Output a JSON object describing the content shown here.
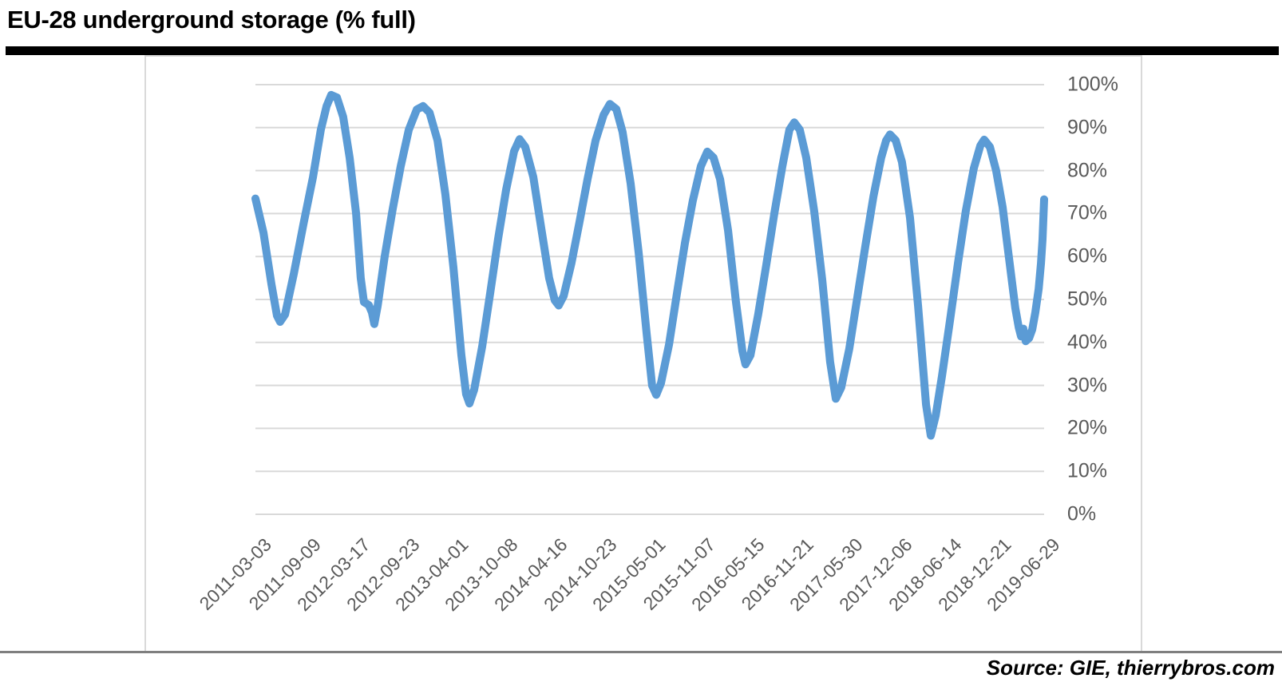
{
  "header": {
    "title": "EU-28 underground storage (% full)"
  },
  "footer": {
    "source": "Source: GIE, thierrybros.com"
  },
  "chart_data": {
    "type": "line",
    "title": "EU-28 underground storage (% full)",
    "xlabel": "",
    "ylabel": "",
    "unit": "%",
    "ylim": [
      0,
      100
    ],
    "grid": "horizontal",
    "y_axis_side": "right",
    "legend": "none",
    "y_tick_values": [
      100,
      90,
      80,
      70,
      60,
      50,
      40,
      30,
      20,
      10,
      0
    ],
    "y_tick_labels": [
      "100%",
      "90%",
      "80%",
      "70%",
      "60%",
      "50%",
      "40%",
      "30%",
      "20%",
      "10%",
      "0%"
    ],
    "x_range": [
      "2011-03-03",
      "2019-06-29"
    ],
    "x_tick_labels": [
      "2011-03-03",
      "2011-09-09",
      "2012-03-17",
      "2012-09-23",
      "2013-04-01",
      "2013-10-08",
      "2014-04-16",
      "2014-10-23",
      "2015-05-01",
      "2015-11-07",
      "2016-05-15",
      "2016-11-21",
      "2017-05-30",
      "2017-12-06",
      "2018-06-14",
      "2018-12-21",
      "2019-06-29"
    ],
    "colors": {
      "line": "#5B9BD5",
      "gridline": "#D9D9D9",
      "axis_labels": "#595959",
      "frame_border": "#D9D9D9",
      "divider": "#7F7F7F",
      "title_bar": "#000000"
    },
    "series": [
      {
        "name": "EU-28 underground storage (% full)",
        "color": "#5B9BD5",
        "points": [
          [
            "2011-03-03",
            73.5
          ],
          [
            "2011-04-03",
            65.5
          ],
          [
            "2011-05-04",
            53.5
          ],
          [
            "2011-05-25",
            46.2
          ],
          [
            "2011-06-06",
            44.8
          ],
          [
            "2011-06-25",
            46.5
          ],
          [
            "2011-07-29",
            56.0
          ],
          [
            "2011-09-04",
            67.5
          ],
          [
            "2011-10-11",
            78.5
          ],
          [
            "2011-11-10",
            89.5
          ],
          [
            "2011-12-02",
            95.0
          ],
          [
            "2011-12-20",
            97.6
          ],
          [
            "2012-01-11",
            97.0
          ],
          [
            "2012-02-04",
            92.5
          ],
          [
            "2012-02-29",
            83.0
          ],
          [
            "2012-03-25",
            70.0
          ],
          [
            "2012-04-12",
            55.0
          ],
          [
            "2012-04-24",
            49.4
          ],
          [
            "2012-05-13",
            48.7
          ],
          [
            "2012-05-25",
            47.0
          ],
          [
            "2012-06-03",
            44.3
          ],
          [
            "2012-06-16",
            48.5
          ],
          [
            "2012-07-13",
            60.0
          ],
          [
            "2012-08-13",
            71.0
          ],
          [
            "2012-09-13",
            81.0
          ],
          [
            "2012-10-14",
            89.5
          ],
          [
            "2012-11-14",
            94.2
          ],
          [
            "2012-12-08",
            95.0
          ],
          [
            "2013-01-02",
            93.5
          ],
          [
            "2013-02-02",
            87.0
          ],
          [
            "2013-03-04",
            74.5
          ],
          [
            "2013-04-04",
            57.5
          ],
          [
            "2013-05-05",
            37.0
          ],
          [
            "2013-05-23",
            28.0
          ],
          [
            "2013-06-05",
            25.8
          ],
          [
            "2013-06-23",
            29.0
          ],
          [
            "2013-07-24",
            39.0
          ],
          [
            "2013-08-24",
            51.5
          ],
          [
            "2013-09-23",
            64.0
          ],
          [
            "2013-10-24",
            75.5
          ],
          [
            "2013-11-24",
            84.5
          ],
          [
            "2013-12-15",
            87.3
          ],
          [
            "2014-01-06",
            85.5
          ],
          [
            "2014-02-06",
            78.5
          ],
          [
            "2014-03-09",
            66.5
          ],
          [
            "2014-04-08",
            55.0
          ],
          [
            "2014-04-30",
            49.8
          ],
          [
            "2014-05-15",
            48.6
          ],
          [
            "2014-06-03",
            50.8
          ],
          [
            "2014-07-03",
            58.5
          ],
          [
            "2014-08-03",
            68.0
          ],
          [
            "2014-09-03",
            78.0
          ],
          [
            "2014-10-04",
            87.0
          ],
          [
            "2014-11-04",
            93.0
          ],
          [
            "2014-11-28",
            95.5
          ],
          [
            "2014-12-23",
            94.3
          ],
          [
            "2015-01-16",
            89.0
          ],
          [
            "2015-02-16",
            77.0
          ],
          [
            "2015-03-19",
            61.0
          ],
          [
            "2015-04-19",
            42.0
          ],
          [
            "2015-05-10",
            30.0
          ],
          [
            "2015-05-26",
            27.8
          ],
          [
            "2015-06-13",
            30.5
          ],
          [
            "2015-07-14",
            39.5
          ],
          [
            "2015-08-14",
            51.5
          ],
          [
            "2015-09-13",
            63.0
          ],
          [
            "2015-10-14",
            73.0
          ],
          [
            "2015-11-14",
            81.0
          ],
          [
            "2015-12-09",
            84.4
          ],
          [
            "2016-01-02",
            83.0
          ],
          [
            "2016-01-27",
            78.0
          ],
          [
            "2016-02-27",
            66.0
          ],
          [
            "2016-03-28",
            49.5
          ],
          [
            "2016-04-22",
            38.0
          ],
          [
            "2016-05-04",
            34.9
          ],
          [
            "2016-05-23",
            37.0
          ],
          [
            "2016-06-22",
            46.5
          ],
          [
            "2016-07-23",
            58.0
          ],
          [
            "2016-08-23",
            70.0
          ],
          [
            "2016-09-23",
            81.0
          ],
          [
            "2016-10-20",
            89.5
          ],
          [
            "2016-11-08",
            91.2
          ],
          [
            "2016-11-29",
            89.5
          ],
          [
            "2016-12-24",
            83.0
          ],
          [
            "2017-01-24",
            70.5
          ],
          [
            "2017-02-24",
            54.5
          ],
          [
            "2017-03-26",
            35.5
          ],
          [
            "2017-04-17",
            26.9
          ],
          [
            "2017-05-08",
            29.5
          ],
          [
            "2017-06-08",
            38.5
          ],
          [
            "2017-07-09",
            50.5
          ],
          [
            "2017-08-09",
            62.5
          ],
          [
            "2017-09-09",
            74.0
          ],
          [
            "2017-10-09",
            83.0
          ],
          [
            "2017-10-28",
            87.0
          ],
          [
            "2017-11-12",
            88.4
          ],
          [
            "2017-12-04",
            87.0
          ],
          [
            "2017-12-28",
            82.0
          ],
          [
            "2018-01-28",
            69.0
          ],
          [
            "2018-02-28",
            48.5
          ],
          [
            "2018-03-31",
            25.5
          ],
          [
            "2018-04-18",
            18.3
          ],
          [
            "2018-05-07",
            23.0
          ],
          [
            "2018-05-31",
            32.0
          ],
          [
            "2018-07-01",
            45.0
          ],
          [
            "2018-08-01",
            58.5
          ],
          [
            "2018-08-31",
            70.5
          ],
          [
            "2018-10-01",
            80.5
          ],
          [
            "2018-10-26",
            85.8
          ],
          [
            "2018-11-10",
            87.2
          ],
          [
            "2018-12-02",
            85.5
          ],
          [
            "2018-12-26",
            80.0
          ],
          [
            "2019-01-20",
            71.5
          ],
          [
            "2019-02-14",
            59.5
          ],
          [
            "2019-03-10",
            48.0
          ],
          [
            "2019-03-23",
            43.5
          ],
          [
            "2019-04-01",
            41.4
          ],
          [
            "2019-04-10",
            43.2
          ],
          [
            "2019-04-19",
            40.3
          ],
          [
            "2019-05-02",
            41.0
          ],
          [
            "2019-05-14",
            43.0
          ],
          [
            "2019-05-26",
            47.0
          ],
          [
            "2019-06-08",
            52.5
          ],
          [
            "2019-06-17",
            58.5
          ],
          [
            "2019-06-23",
            64.0
          ],
          [
            "2019-06-29",
            73.3
          ]
        ]
      }
    ]
  }
}
